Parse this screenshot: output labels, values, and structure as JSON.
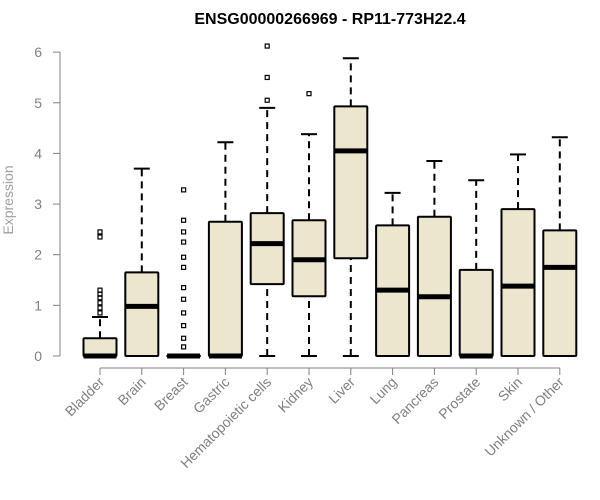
{
  "chart_data": {
    "type": "boxplot",
    "title": "ENSG00000266969 - RP11-773H22.4",
    "xlabel": "",
    "ylabel": "Expression",
    "ylim": [
      0,
      6.2
    ],
    "yticks": [
      0,
      1,
      2,
      3,
      4,
      5,
      6
    ],
    "box_fill": "#ede6cf",
    "categories": [
      "Bladder",
      "Brain",
      "Breast",
      "Gastric",
      "Hematopoietic cells",
      "Kidney",
      "Liver",
      "Lung",
      "Pancreas",
      "Prostate",
      "Skin",
      "Unknown / Other"
    ],
    "boxes": [
      {
        "min": 0,
        "q1": 0,
        "median": 0,
        "q3": 0.35,
        "max": 0.77,
        "outliers": [
          0.85,
          0.95,
          1.05,
          1.15,
          1.22,
          1.3,
          2.35,
          2.45
        ]
      },
      {
        "min": 0,
        "q1": 0,
        "median": 0.98,
        "q3": 1.65,
        "max": 3.7,
        "outliers": []
      },
      {
        "min": 0,
        "q1": 0,
        "median": 0,
        "q3": 0,
        "max": 0,
        "outliers": [
          0.18,
          0.35,
          0.6,
          0.85,
          1.12,
          1.35,
          1.75,
          1.95,
          2.25,
          2.45,
          2.68,
          3.28
        ]
      },
      {
        "min": 0,
        "q1": 0,
        "median": 0,
        "q3": 2.65,
        "max": 4.22,
        "outliers": []
      },
      {
        "min": 0,
        "q1": 1.42,
        "median": 2.22,
        "q3": 2.82,
        "max": 4.9,
        "outliers": [
          5.05,
          5.5,
          6.12
        ]
      },
      {
        "min": 0,
        "q1": 1.18,
        "median": 1.9,
        "q3": 2.68,
        "max": 4.38,
        "outliers": [
          5.18
        ]
      },
      {
        "min": 0,
        "q1": 1.93,
        "median": 4.05,
        "q3": 4.93,
        "max": 5.88,
        "outliers": []
      },
      {
        "min": 0,
        "q1": 0,
        "median": 1.3,
        "q3": 2.58,
        "max": 3.22,
        "outliers": []
      },
      {
        "min": 0,
        "q1": 0,
        "median": 1.17,
        "q3": 2.75,
        "max": 3.85,
        "outliers": []
      },
      {
        "min": 0,
        "q1": 0,
        "median": 0,
        "q3": 1.7,
        "max": 3.47,
        "outliers": []
      },
      {
        "min": 0,
        "q1": 0,
        "median": 1.38,
        "q3": 2.9,
        "max": 3.98,
        "outliers": []
      },
      {
        "min": 0,
        "q1": 0,
        "median": 1.75,
        "q3": 2.48,
        "max": 4.32,
        "outliers": []
      }
    ]
  }
}
